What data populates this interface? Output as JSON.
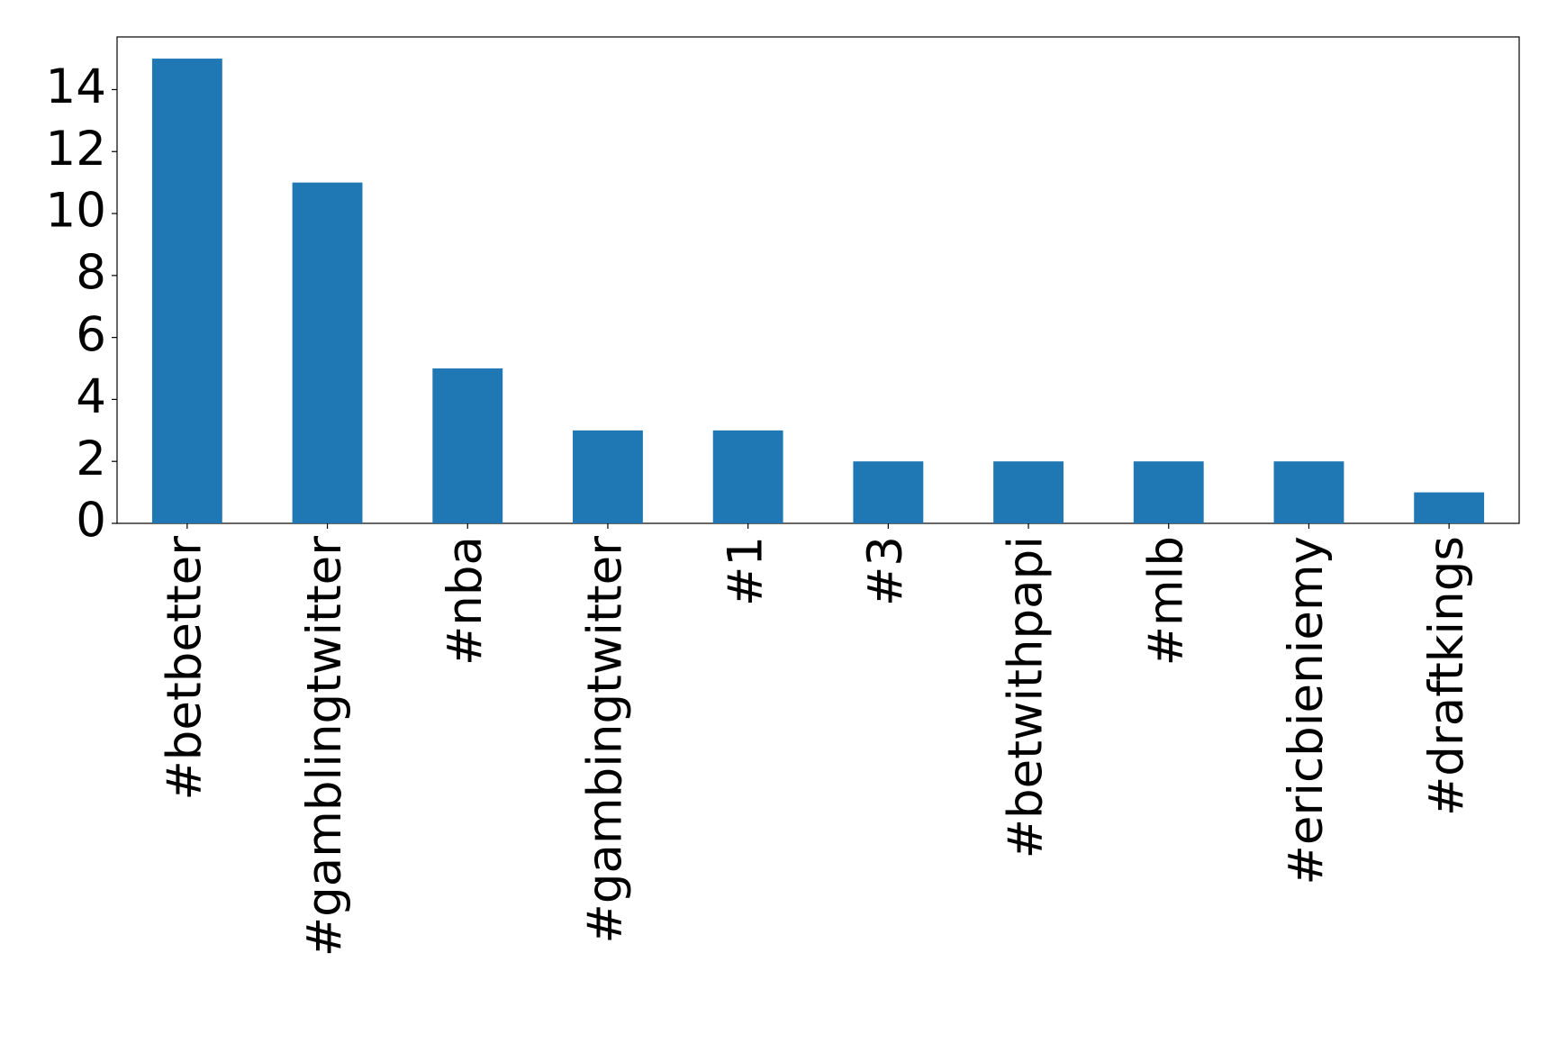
{
  "chart_data": {
    "type": "bar",
    "categories": [
      "#betbetter",
      "#gamblingtwitter",
      "#nba",
      "#gambingtwitter",
      "#1",
      "#3",
      "#betwithpapi",
      "#mlb",
      "#ericbieniemy",
      "#draftkings"
    ],
    "values": [
      15,
      11,
      5,
      3,
      3,
      2,
      2,
      2,
      2,
      1
    ],
    "color": "#1f77b4",
    "ylim": [
      0,
      15.7
    ],
    "yticks": [
      0,
      2,
      4,
      6,
      8,
      10,
      12,
      14
    ],
    "grid": false
  }
}
